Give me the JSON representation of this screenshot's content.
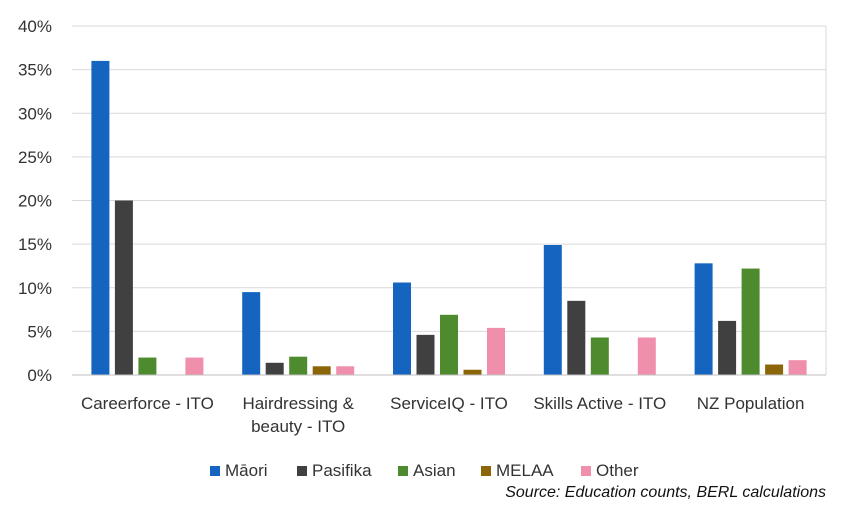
{
  "chart_data": {
    "type": "bar",
    "categories": [
      [
        "Careerforce - ITO"
      ],
      [
        "Hairdressing &",
        "beauty - ITO"
      ],
      [
        "ServiceIQ - ITO"
      ],
      [
        "Skills Active - ITO"
      ],
      [
        "NZ Population"
      ]
    ],
    "series": [
      {
        "name": "Māori",
        "color": "#1565c0",
        "values": [
          36.0,
          9.5,
          10.6,
          14.9,
          12.8
        ]
      },
      {
        "name": "Pasifika",
        "color": "#404040",
        "values": [
          20.0,
          1.4,
          4.6,
          8.5,
          6.2
        ]
      },
      {
        "name": "Asian",
        "color": "#4e8a2e",
        "values": [
          2.0,
          2.1,
          6.9,
          4.3,
          12.2
        ]
      },
      {
        "name": "MELAA",
        "color": "#8b6508",
        "values": [
          0.0,
          1.0,
          0.6,
          0.0,
          1.2
        ]
      },
      {
        "name": "Other",
        "color": "#f08fab",
        "values": [
          2.0,
          1.0,
          5.4,
          4.3,
          1.7
        ]
      }
    ],
    "ylim": [
      0,
      40
    ],
    "yticks": [
      "0%",
      "5%",
      "10%",
      "15%",
      "20%",
      "25%",
      "30%",
      "35%",
      "40%"
    ],
    "grid": true,
    "legend": "bottom",
    "source": "Source: Education counts, BERL calculations"
  }
}
